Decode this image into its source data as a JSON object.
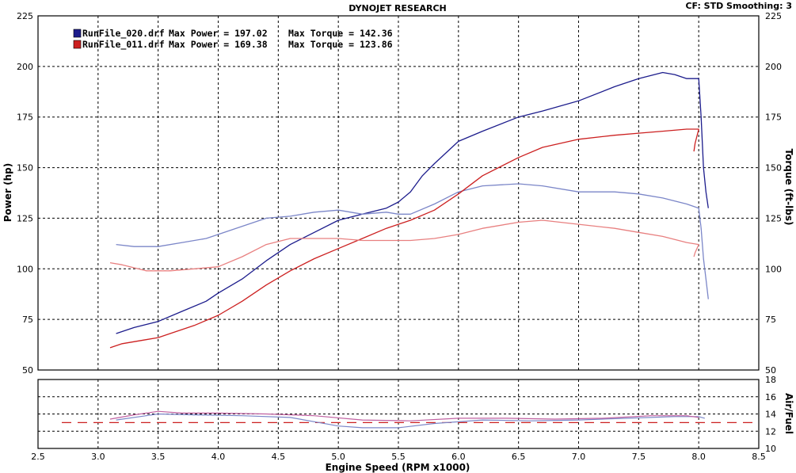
{
  "header": {
    "title": "DYNOJET RESEARCH",
    "correction": "CF: STD  Smoothing: 3"
  },
  "chart_data": [
    {
      "type": "line",
      "title": "DYNOJET RESEARCH",
      "xlabel": "Engine Speed (RPM x1000)",
      "ylabel": "Power (hp)",
      "ylabel_right": "Torque (ft-lbs)",
      "xlim": [
        2.5,
        8.5
      ],
      "ylim": [
        50,
        225
      ],
      "x_ticks": [
        "2.5",
        "3.0",
        "3.5",
        "4.0",
        "4.5",
        "5.0",
        "5.5",
        "6.0",
        "6.5",
        "7.0",
        "7.5",
        "8.0",
        "8.5"
      ],
      "y_ticks": [
        "50",
        "75",
        "100",
        "125",
        "150",
        "175",
        "200",
        "225"
      ],
      "y_ticks_right": [
        "50",
        "75",
        "100",
        "125",
        "150",
        "175",
        "200",
        "225"
      ],
      "grid": true,
      "legend_position": "top-left",
      "legend": [
        {
          "run": "RunFile_020.drf",
          "power_text": "Max Power = 197.02",
          "torque_text": "Max Torque = 142.36",
          "color": "#1c1c8c"
        },
        {
          "run": "RunFile_011.drf",
          "power_text": "Max Power = 169.38",
          "torque_text": "Max Torque = 123.86",
          "color": "#cc2020"
        }
      ],
      "series": [
        {
          "kind": "power",
          "run": 0,
          "color": "#1c1c8c",
          "x": [
            3.15,
            3.3,
            3.5,
            3.7,
            3.9,
            4.0,
            4.2,
            4.4,
            4.6,
            4.8,
            5.0,
            5.2,
            5.4,
            5.5,
            5.6,
            5.7,
            5.8,
            6.0,
            6.2,
            6.5,
            6.7,
            7.0,
            7.3,
            7.5,
            7.7,
            7.8,
            7.9,
            8.0,
            8.02,
            8.04,
            8.06,
            8.08
          ],
          "y": [
            68,
            71,
            74,
            79,
            84,
            88,
            95,
            104,
            112,
            118,
            124,
            127,
            130,
            133,
            138,
            146,
            152,
            163,
            168,
            175,
            178,
            183,
            190,
            194,
            197,
            196,
            194,
            194,
            175,
            150,
            138,
            130
          ]
        },
        {
          "kind": "torque",
          "run": 0,
          "color": "#7b86c8",
          "x": [
            3.15,
            3.3,
            3.5,
            3.7,
            3.9,
            4.0,
            4.2,
            4.4,
            4.6,
            4.8,
            5.0,
            5.2,
            5.4,
            5.5,
            5.6,
            5.8,
            6.0,
            6.2,
            6.5,
            6.7,
            7.0,
            7.3,
            7.5,
            7.7,
            7.9,
            8.0,
            8.02,
            8.04,
            8.06,
            8.08
          ],
          "y": [
            112,
            111,
            111,
            113,
            115,
            117,
            121,
            125,
            126,
            128,
            129,
            127,
            128,
            127,
            127,
            132,
            138,
            141,
            142,
            141,
            138,
            138,
            137,
            135,
            132,
            130,
            120,
            105,
            95,
            85
          ]
        },
        {
          "kind": "power",
          "run": 1,
          "color": "#cc2020",
          "x": [
            3.1,
            3.2,
            3.4,
            3.5,
            3.6,
            3.8,
            4.0,
            4.2,
            4.4,
            4.6,
            4.8,
            5.0,
            5.2,
            5.4,
            5.6,
            5.8,
            6.0,
            6.2,
            6.5,
            6.7,
            7.0,
            7.3,
            7.5,
            7.7,
            7.9,
            8.0,
            7.97,
            7.96
          ],
          "y": [
            61,
            63,
            65,
            66,
            68,
            72,
            77,
            84,
            92,
            99,
            105,
            110,
            115,
            120,
            124,
            129,
            137,
            146,
            155,
            160,
            164,
            166,
            167,
            168,
            169,
            169,
            162,
            158
          ]
        },
        {
          "kind": "torque",
          "run": 1,
          "color": "#e88080",
          "x": [
            3.1,
            3.2,
            3.4,
            3.6,
            3.8,
            4.0,
            4.2,
            4.4,
            4.6,
            4.8,
            5.0,
            5.2,
            5.4,
            5.6,
            5.8,
            6.0,
            6.2,
            6.5,
            6.7,
            7.0,
            7.3,
            7.5,
            7.7,
            7.9,
            8.0,
            7.97,
            7.96
          ],
          "y": [
            103,
            102,
            99,
            99,
            100,
            101,
            106,
            112,
            115,
            115,
            115,
            114,
            114,
            114,
            115,
            117,
            120,
            123,
            124,
            122,
            120,
            118,
            116,
            113,
            112,
            108,
            106
          ]
        }
      ]
    },
    {
      "type": "line",
      "ylabel_right": "Air/Fuel",
      "xlim": [
        2.5,
        8.5
      ],
      "ylim": [
        10,
        18
      ],
      "y_ticks_right": [
        "10",
        "12",
        "14",
        "16",
        "18"
      ],
      "grid": true,
      "reference_line": {
        "value": 13,
        "color": "#cc2020"
      },
      "series": [
        {
          "run": 0,
          "color": "#7b86c8",
          "x": [
            3.15,
            3.4,
            3.5,
            3.8,
            4.2,
            4.6,
            5.0,
            5.2,
            5.5,
            5.8,
            6.2,
            6.6,
            7.0,
            7.4,
            7.8,
            8.0,
            8.05
          ],
          "y": [
            13.3,
            13.8,
            14.0,
            13.9,
            13.8,
            13.6,
            12.6,
            12.4,
            12.4,
            12.9,
            13.3,
            13.2,
            13.3,
            13.5,
            13.7,
            13.7,
            13.5
          ]
        },
        {
          "run": 1,
          "color": "#c060a0",
          "x": [
            3.1,
            3.3,
            3.5,
            3.7,
            4.0,
            4.4,
            4.8,
            5.2,
            5.6,
            6.0,
            6.4,
            6.8,
            7.2,
            7.6,
            7.9,
            8.0
          ],
          "y": [
            13.4,
            13.9,
            14.3,
            14.1,
            14.1,
            14.0,
            13.8,
            13.3,
            13.2,
            13.5,
            13.5,
            13.4,
            13.5,
            13.8,
            13.8,
            13.6
          ]
        }
      ]
    }
  ]
}
